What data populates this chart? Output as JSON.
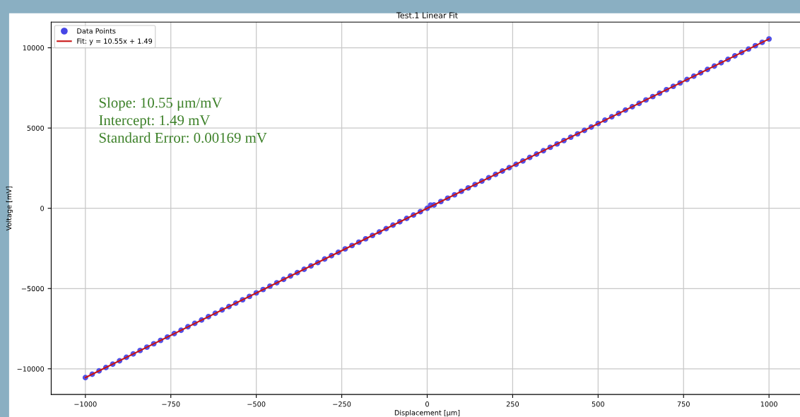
{
  "chart_data": {
    "type": "scatter",
    "title": "Test.1 Linear Fit",
    "xlabel": "Displacement [μm]",
    "ylabel": "Voltage [mV]",
    "series": [
      {
        "name": "Data Points",
        "color": "#4646e6",
        "marker": "circle",
        "x": [
          -1000,
          -980,
          -960,
          -940,
          -920,
          -900,
          -880,
          -860,
          -840,
          -820,
          -800,
          -780,
          -760,
          -740,
          -720,
          -700,
          -680,
          -660,
          -640,
          -620,
          -600,
          -580,
          -560,
          -540,
          -520,
          -500,
          -480,
          -460,
          -440,
          -420,
          -400,
          -380,
          -360,
          -340,
          -320,
          -300,
          -280,
          -260,
          -240,
          -220,
          -200,
          -180,
          -160,
          -140,
          -120,
          -100,
          -80,
          -60,
          -40,
          -20,
          0,
          10,
          20,
          40,
          60,
          80,
          100,
          120,
          140,
          160,
          180,
          200,
          220,
          240,
          260,
          280,
          300,
          320,
          340,
          360,
          380,
          400,
          420,
          440,
          460,
          480,
          500,
          520,
          540,
          560,
          580,
          600,
          620,
          640,
          660,
          680,
          700,
          720,
          740,
          760,
          780,
          800,
          820,
          840,
          860,
          880,
          900,
          920,
          940,
          960,
          980,
          1000
        ],
        "values": [
          -10550,
          -10340,
          -10130,
          -9920,
          -9710,
          -9500,
          -9280,
          -9070,
          -8860,
          -8650,
          -8440,
          -8230,
          -8020,
          -7810,
          -7600,
          -7380,
          -7170,
          -6960,
          -6750,
          -6540,
          -6330,
          -6120,
          -5910,
          -5700,
          -5490,
          -5270,
          -5060,
          -4850,
          -4640,
          -4430,
          -4220,
          -4010,
          -3800,
          -3590,
          -3380,
          -3160,
          -2950,
          -2740,
          -2530,
          -2320,
          -2110,
          -1900,
          -1690,
          -1480,
          -1270,
          -1050,
          -840,
          -630,
          -420,
          -210,
          0,
          200,
          210,
          420,
          630,
          840,
          1060,
          1270,
          1480,
          1690,
          1900,
          2110,
          2320,
          2530,
          2740,
          2950,
          3170,
          3380,
          3590,
          3800,
          4010,
          4220,
          4430,
          4640,
          4850,
          5060,
          5280,
          5490,
          5700,
          5910,
          6120,
          6330,
          6540,
          6750,
          6960,
          7170,
          7390,
          7600,
          7810,
          8020,
          8230,
          8440,
          8650,
          8860,
          9070,
          9280,
          9500,
          9710,
          9920,
          10130,
          10340,
          10550
        ]
      },
      {
        "name": "Fit: y = 10.55x + 1.49",
        "type": "line",
        "color": "#c81414",
        "line_style": "solid",
        "x": [
          -1000,
          1000
        ],
        "values": [
          -10550,
          10550
        ]
      }
    ],
    "xlim": [
      -1100,
      1100
    ],
    "xticks": [
      {
        "value": -1000,
        "label": "−1000"
      },
      {
        "value": -750,
        "label": "−750"
      },
      {
        "value": -500,
        "label": "−500"
      },
      {
        "value": -250,
        "label": "−250"
      },
      0,
      250,
      500,
      750,
      1000
    ],
    "ylim": [
      -11600,
      11600
    ],
    "yticks": [
      {
        "value": -10000,
        "label": "−10000"
      },
      {
        "value": -5000,
        "label": "−5000"
      },
      0,
      5000,
      10000
    ],
    "grid": true,
    "legend": "top left",
    "annotations": [
      "Slope: 10.55 μm/mV",
      "Intercept: 1.49 mV",
      "Standard Error: 0.00169 mV"
    ]
  }
}
